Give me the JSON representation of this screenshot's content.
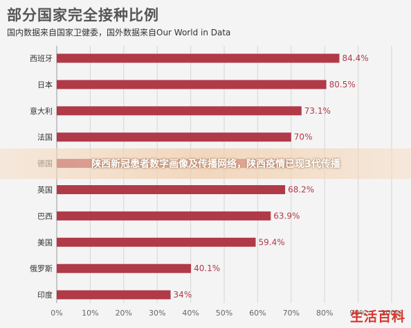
{
  "header": {
    "title": "部分国家完全接种比例",
    "subtitle": "国内数据来自国家卫健委，国外数据来自Our World in Data"
  },
  "banner": {
    "text": "陕西新冠患者数字画像及传播网络，陕西疫情已现3代传播"
  },
  "watermark": {
    "text": "生活百科"
  },
  "colors": {
    "bar": "#b13a48",
    "label": "#b13a48",
    "grid": "#d5d5d5",
    "tick": "#666666"
  },
  "chart_data": {
    "type": "bar",
    "orientation": "horizontal",
    "categories": [
      "西班牙",
      "日本",
      "意大利",
      "法国",
      "德国",
      "英国",
      "巴西",
      "美国",
      "俄罗斯",
      "印度"
    ],
    "values": [
      84.4,
      80.5,
      73.1,
      70,
      69.5,
      68.2,
      63.9,
      59.4,
      40.1,
      34
    ],
    "value_labels": [
      "84.4%",
      "80.5%",
      "73.1%",
      "70%",
      "",
      "68.2%",
      "63.9%",
      "59.4%",
      "40.1%",
      "34%"
    ],
    "xlim": [
      0,
      100
    ],
    "x_ticks": [
      "0%",
      "10%",
      "20%",
      "30%",
      "40%",
      "50%",
      "60%",
      "70%",
      "80%",
      "90%",
      "100%"
    ],
    "grid": true
  }
}
